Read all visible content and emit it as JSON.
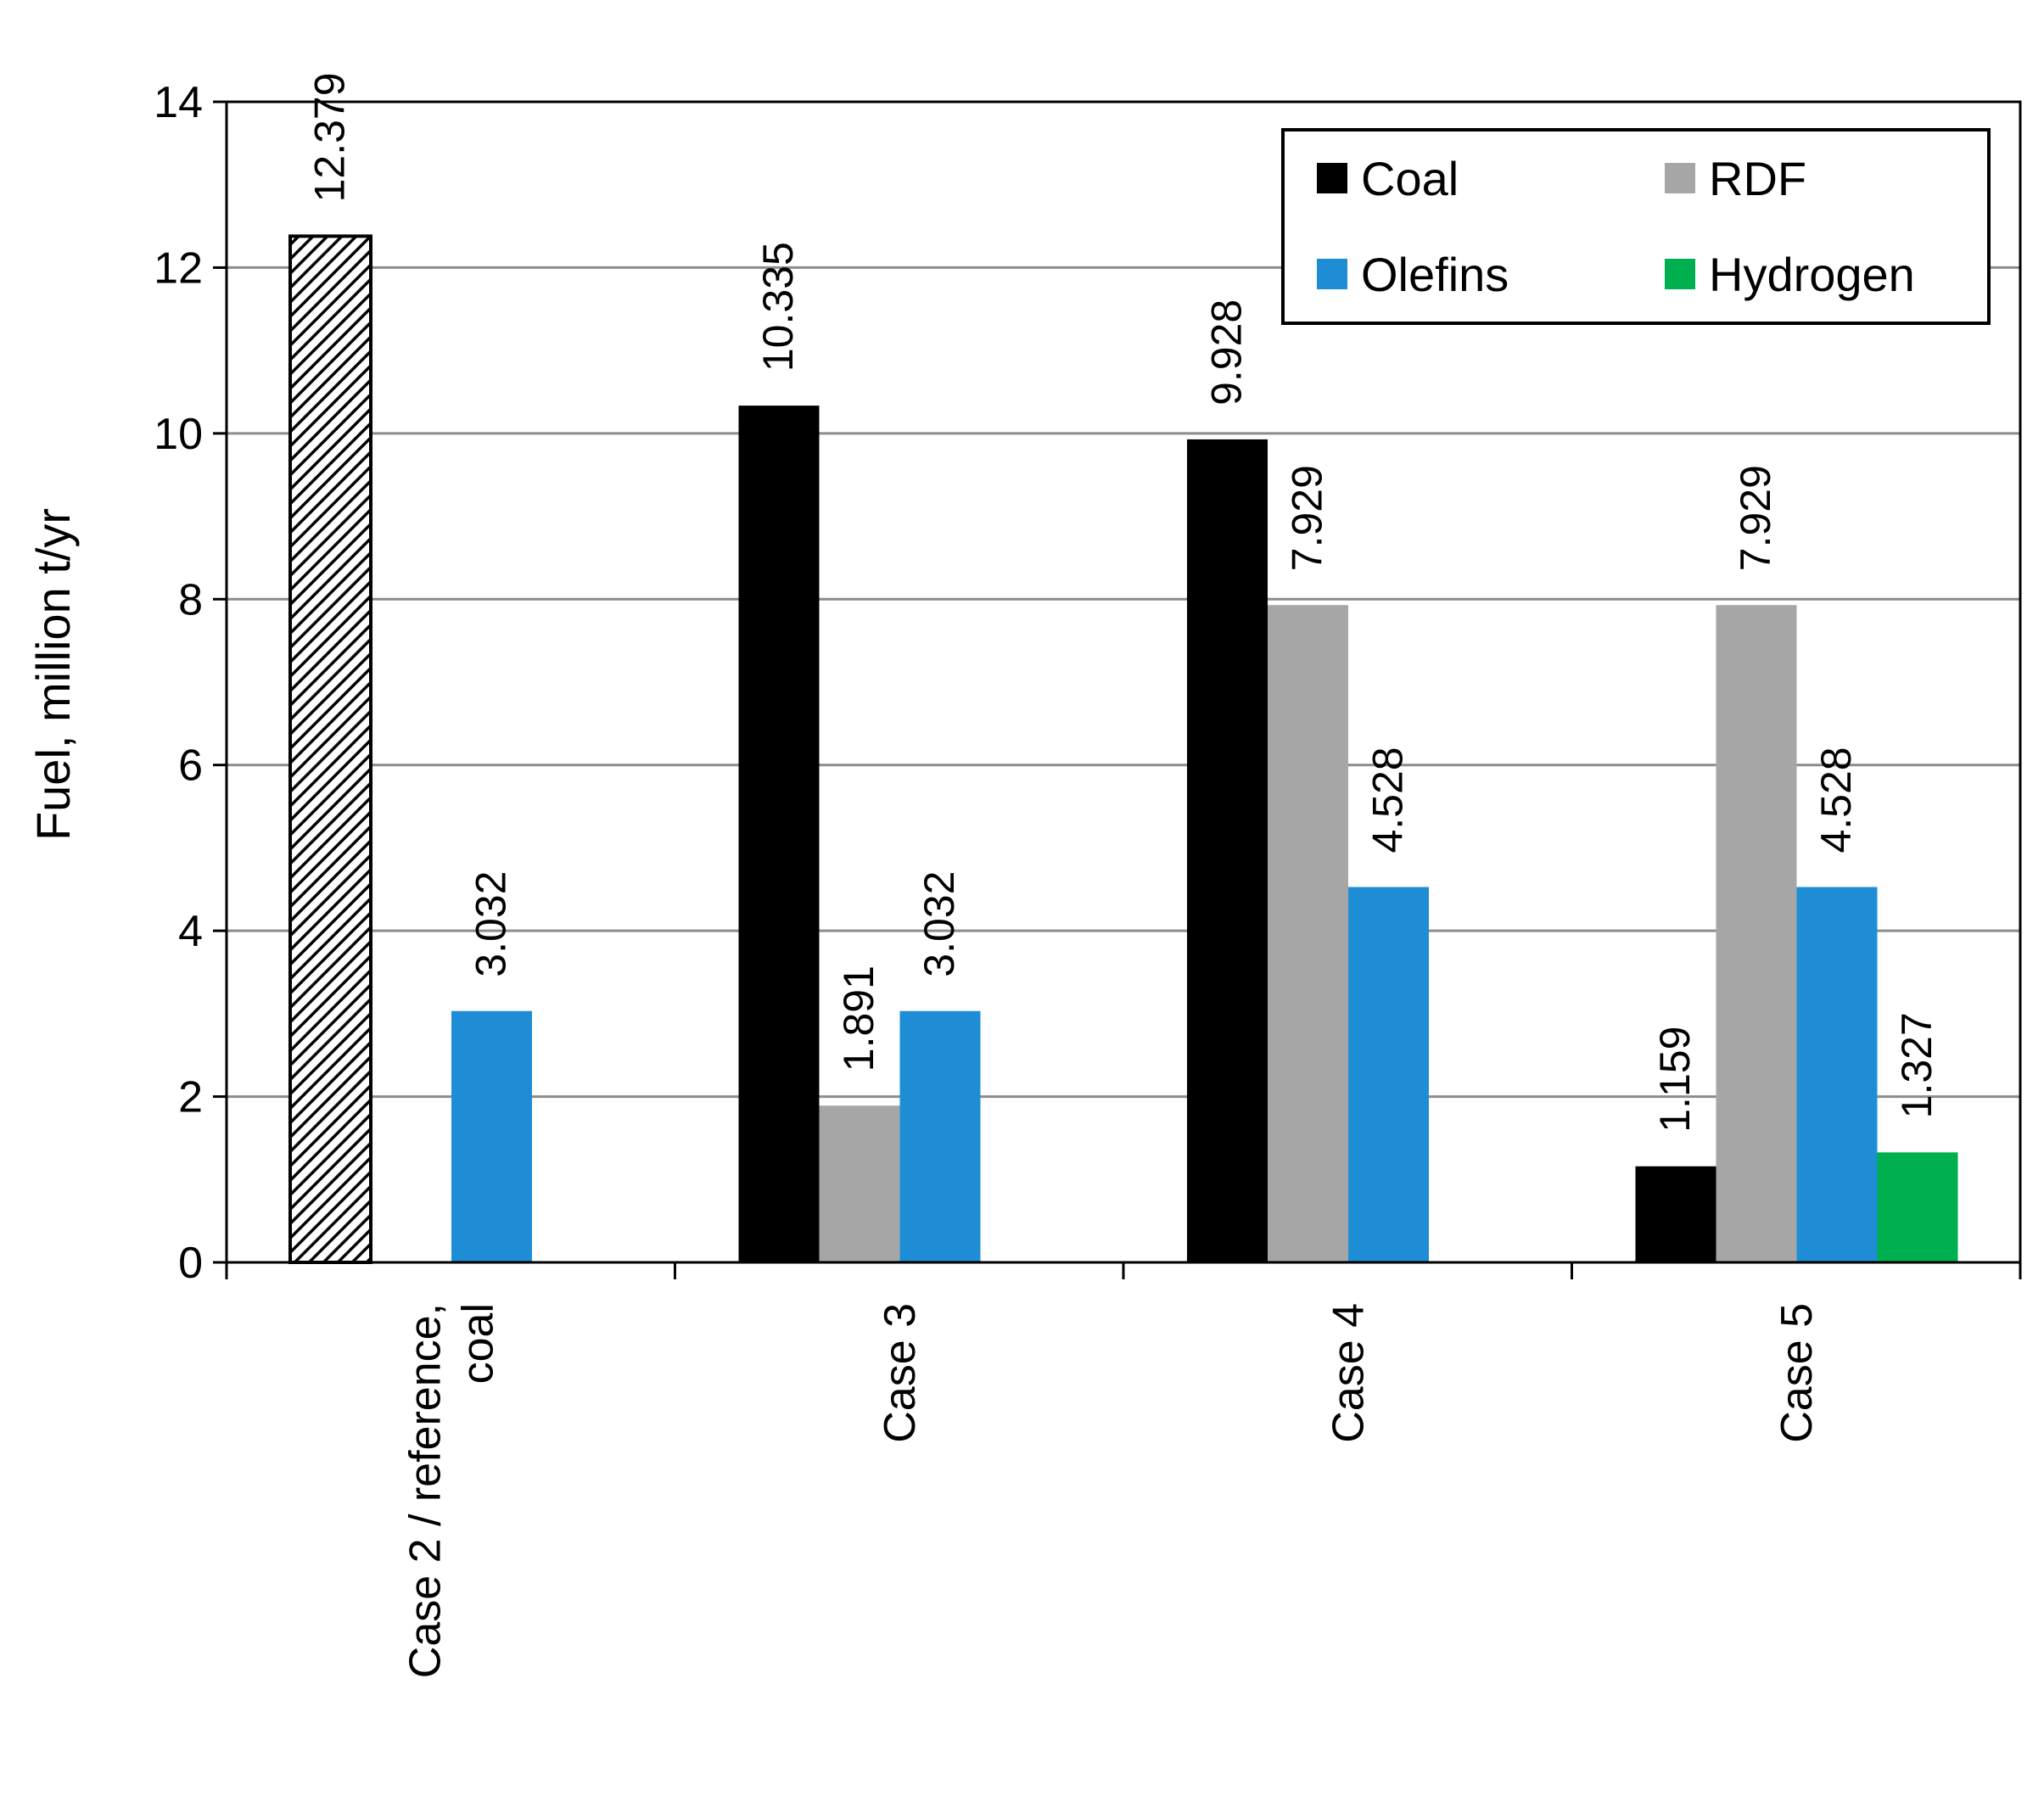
{
  "chart_data": {
    "type": "bar",
    "title": "",
    "xlabel": "",
    "ylabel": "Fuel, million t/yr",
    "ylim": [
      0,
      14
    ],
    "yticks": [
      0,
      2,
      4,
      6,
      8,
      10,
      12,
      14
    ],
    "grid": true,
    "legend_position": "top-right",
    "categories": [
      [
        "Case 2 / reference,",
        "coal"
      ],
      [
        "Case 3"
      ],
      [
        "Case 4"
      ],
      [
        "Case 5"
      ]
    ],
    "series": [
      {
        "name": "Coal",
        "color": "#000000",
        "values": [
          12.379,
          10.335,
          9.928,
          1.159
        ],
        "labels": [
          "12.379",
          "10.335",
          "9.928",
          "1.159"
        ]
      },
      {
        "name": "RDF",
        "color": "#a6a6a6",
        "values": [
          null,
          1.891,
          7.929,
          7.929
        ],
        "labels": [
          "",
          "1.891",
          "7.929",
          "7.929"
        ]
      },
      {
        "name": "Olefins",
        "color": "#1f8dd6",
        "values": [
          3.032,
          3.032,
          4.528,
          4.528
        ],
        "labels": [
          "3.032",
          "3.032",
          "4.528",
          "4.528"
        ]
      },
      {
        "name": "Hydrogen",
        "color": "#00b050",
        "values": [
          null,
          null,
          null,
          1.327
        ],
        "labels": [
          "",
          "",
          "",
          "1.327"
        ]
      }
    ],
    "bar_styles": [
      {
        "series": "Coal",
        "category_index": 0,
        "style": "hatched"
      }
    ]
  }
}
